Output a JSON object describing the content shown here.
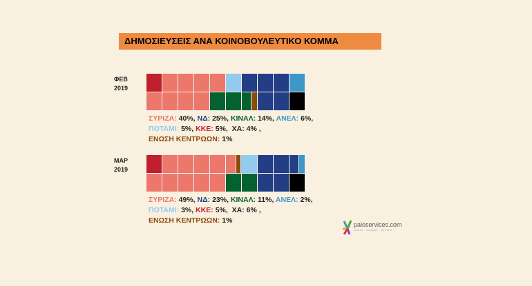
{
  "title": "ΔΗΜΟΣΙΕΥΣΕΙΣ ΑΝΑ ΚΟΙΝΟΒΟΥΛΕΥΤΙΚΟ ΚΟΜΜΑ",
  "parties": {
    "syriza": {
      "label": "ΣΥΡΙΖΑ:",
      "color": "#ec776b"
    },
    "nd": {
      "label": "ΝΔ:",
      "color": "#243e85"
    },
    "kinal": {
      "label": "ΚΙΝΑΛ:",
      "color": "#03622f"
    },
    "anel": {
      "label": "ΑΝΕΛ:",
      "color": "#3d98c8"
    },
    "potami": {
      "label": "ΠΟΤΑΜΙ:",
      "color": "#93cbef"
    },
    "kke": {
      "label": "ΚΚΕ:",
      "color": "#c01f2e"
    },
    "xa": {
      "label": "ΧΑ:",
      "color": "#000000"
    },
    "enosi": {
      "label": "ΕΝΩΣΗ ΚΕΝΤΡΩΩΝ:",
      "color": "#8a4b0b"
    }
  },
  "chart_data": {
    "type": "waffle",
    "title": "ΔΗΜΟΣΙΕΥΣΕΙΣ ΑΝΑ ΚΟΙΝΟΒΟΥΛΕΥΤΙΚΟ ΚΟΜΜΑ",
    "periods": [
      {
        "label_line1": "ΦΕΒ",
        "label_line2": "2019",
        "values": {
          "syriza": "40%",
          "nd": "25%",
          "kinal": "14%",
          "anel": "6%",
          "potami": "5%",
          "kke": "5%",
          "xa": "4%",
          "enosi": "1%"
        }
      },
      {
        "label_line1": "ΜΑΡ",
        "label_line2": "2019",
        "values": {
          "syriza": "49%",
          "nd": "23%",
          "kinal": "11%",
          "anel": "2%",
          "potami": "3%",
          "kke": "5%",
          "xa": "6%",
          "enosi": "1%"
        }
      }
    ]
  },
  "logo": {
    "name": "paloservices.com",
    "tagline": "search · compare · perform"
  }
}
